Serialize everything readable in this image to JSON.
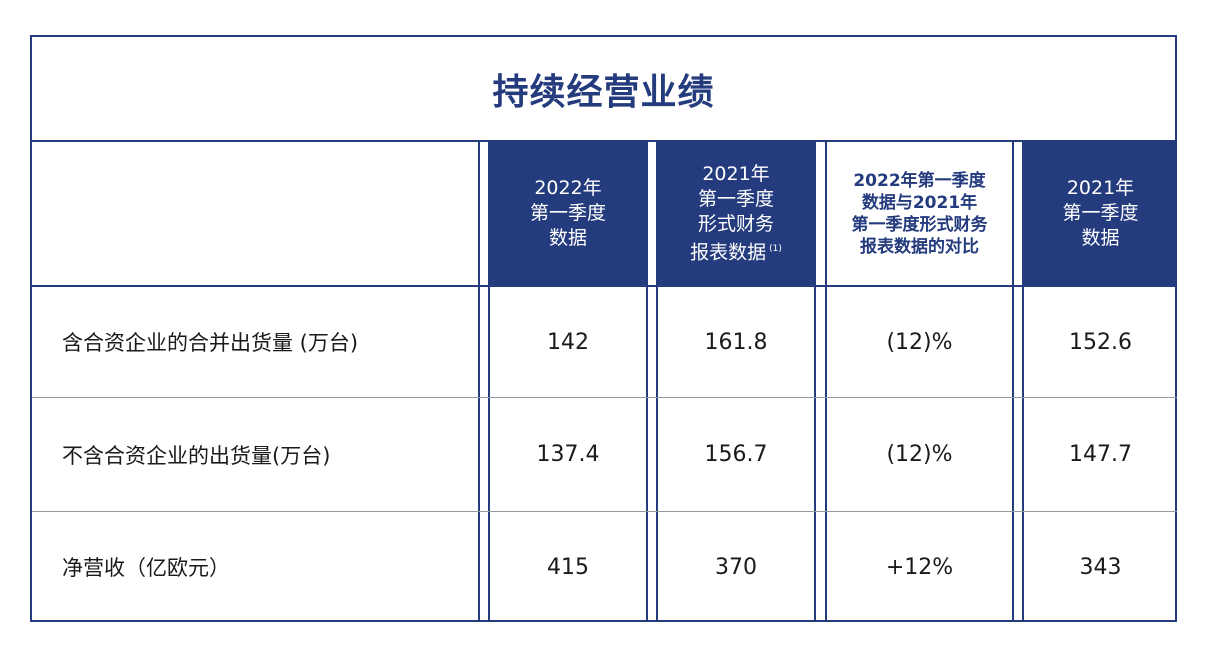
{
  "title": "持续经营业绩",
  "columns": [
    {
      "label": "2022年\n第一季度\n数据",
      "footnote": ""
    },
    {
      "label": "2021年\n第一季度\n形式财务\n报表数据",
      "footnote": "(1)"
    },
    {
      "label": "2022年第一季度\n数据与2021年\n第一季度形式财务\n报表数据的对比",
      "footnote": ""
    },
    {
      "label": "2021年\n第一季度\n数据",
      "footnote": ""
    }
  ],
  "rows": [
    {
      "label": "含合资企业的合并出货量 (万台)",
      "values": [
        "142",
        "161.8",
        "(12)%",
        "152.6"
      ]
    },
    {
      "label": "不含合资企业的出货量(万台)",
      "values": [
        "137.4",
        "156.7",
        "(12)%",
        "147.7"
      ]
    },
    {
      "label": "净营收（亿欧元）",
      "values": [
        "415",
        "370",
        "+12%",
        "343"
      ]
    }
  ],
  "colors": {
    "navy": "#243b7e",
    "row_divider": "#9a9a9a"
  }
}
